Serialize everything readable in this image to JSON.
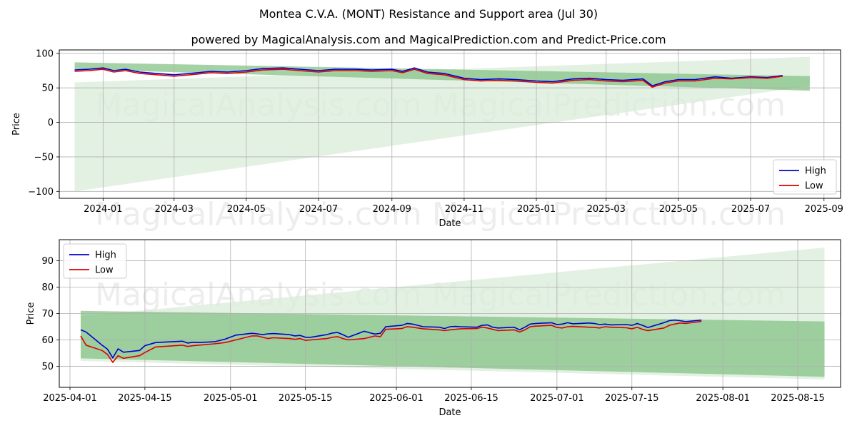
{
  "title": "Montea C.V.A. (MONT) Resistance and Support area (Jul 30)",
  "subtitle": "powered by MagicalAnalysis.com and MagicalPrediction.com and Predict-Price.com",
  "watermarks": [
    "MagicalAnalysis.com",
    "MagicalPrediction.com"
  ],
  "colors": {
    "high": "#0000cc",
    "low": "#dd0000",
    "band_dark": "#7fbf7f",
    "band_light": "#d9ecd9",
    "grid": "#b0b0b0"
  },
  "chart_data": [
    {
      "type": "line",
      "name": "full-history",
      "xlabel": "Date",
      "ylabel": "Price",
      "xlim": [
        "2023-11-25",
        "2025-09-15"
      ],
      "ylim": [
        -110,
        105
      ],
      "x_ticks": [
        "2024-01",
        "2024-03",
        "2024-05",
        "2024-07",
        "2024-09",
        "2024-11",
        "2025-01",
        "2025-03",
        "2025-05",
        "2025-07",
        "2025-09"
      ],
      "y_ticks": [
        100,
        50,
        0,
        -50,
        -100
      ],
      "legend": [
        "High",
        "Low"
      ],
      "legend_position": "bottom-right",
      "grid": true,
      "bands": [
        {
          "name": "resistance-support",
          "start": "2023-12-08",
          "end": "2025-08-20",
          "upper": [
            87,
            67
          ],
          "lower": [
            77,
            46
          ]
        },
        {
          "name": "projection-cone",
          "start": "2023-12-08",
          "end": "2025-08-20",
          "upper": [
            58,
            95
          ],
          "lower": [
            -100,
            53
          ]
        }
      ],
      "series": [
        {
          "name": "High",
          "x": [
            "2023-12-08",
            "2023-12-20",
            "2024-01-01",
            "2024-01-10",
            "2024-01-20",
            "2024-02-01",
            "2024-02-15",
            "2024-03-01",
            "2024-03-15",
            "2024-04-01",
            "2024-04-15",
            "2024-05-01",
            "2024-05-15",
            "2024-06-01",
            "2024-06-15",
            "2024-07-01",
            "2024-07-15",
            "2024-08-01",
            "2024-08-15",
            "2024-09-01",
            "2024-09-10",
            "2024-09-20",
            "2024-10-01",
            "2024-10-15",
            "2024-11-01",
            "2024-11-15",
            "2024-12-01",
            "2024-12-15",
            "2025-01-01",
            "2025-01-15",
            "2025-02-01",
            "2025-02-15",
            "2025-03-01",
            "2025-03-15",
            "2025-04-01",
            "2025-04-09",
            "2025-04-20",
            "2025-05-01",
            "2025-05-15",
            "2025-06-01",
            "2025-06-15",
            "2025-07-01",
            "2025-07-15",
            "2025-07-28"
          ],
          "values": [
            76,
            77,
            79,
            75,
            77,
            73,
            71,
            69,
            71,
            74,
            73,
            75,
            78,
            79,
            77,
            75,
            77,
            77,
            76,
            77,
            74,
            79,
            73,
            71,
            64,
            62,
            63,
            62,
            60,
            59,
            63,
            64,
            62,
            61,
            63,
            53,
            59,
            62,
            62,
            66,
            64,
            66,
            65,
            68
          ]
        },
        {
          "name": "Low",
          "x": [
            "2023-12-08",
            "2023-12-20",
            "2024-01-01",
            "2024-01-10",
            "2024-01-20",
            "2024-02-01",
            "2024-02-15",
            "2024-03-01",
            "2024-03-15",
            "2024-04-01",
            "2024-04-15",
            "2024-05-01",
            "2024-05-15",
            "2024-06-01",
            "2024-06-15",
            "2024-07-01",
            "2024-07-15",
            "2024-08-01",
            "2024-08-15",
            "2024-09-01",
            "2024-09-10",
            "2024-09-20",
            "2024-10-01",
            "2024-10-15",
            "2024-11-01",
            "2024-11-15",
            "2024-12-01",
            "2024-12-15",
            "2025-01-01",
            "2025-01-15",
            "2025-02-01",
            "2025-02-15",
            "2025-03-01",
            "2025-03-15",
            "2025-04-01",
            "2025-04-09",
            "2025-04-20",
            "2025-05-01",
            "2025-05-15",
            "2025-06-01",
            "2025-06-15",
            "2025-07-01",
            "2025-07-15",
            "2025-07-28"
          ],
          "values": [
            74,
            75,
            77,
            73,
            75,
            71,
            69,
            67,
            69,
            72,
            71,
            73,
            76,
            77,
            75,
            73,
            75,
            75,
            74,
            75,
            72,
            77,
            71,
            69,
            62,
            60,
            61,
            60,
            58,
            57,
            61,
            62,
            60,
            59,
            61,
            51,
            57,
            60,
            60,
            64,
            63,
            65,
            64,
            67
          ]
        }
      ]
    },
    {
      "type": "line",
      "name": "recent",
      "xlabel": "Date",
      "ylabel": "Price",
      "xlim": [
        "2025-03-30",
        "2025-08-23"
      ],
      "ylim": [
        42,
        98
      ],
      "x_ticks": [
        "2025-04-01",
        "2025-04-15",
        "2025-05-01",
        "2025-05-15",
        "2025-06-01",
        "2025-06-15",
        "2025-07-01",
        "2025-07-15",
        "2025-08-01",
        "2025-08-15"
      ],
      "y_ticks": [
        90,
        80,
        70,
        60,
        50
      ],
      "legend": [
        "High",
        "Low"
      ],
      "legend_position": "top-left",
      "grid": true,
      "bands": [
        {
          "name": "resistance-support",
          "start": "2025-04-03",
          "end": "2025-08-20",
          "upper": [
            71,
            67
          ],
          "lower": [
            53,
            46
          ]
        },
        {
          "name": "projection-cone",
          "start": "2025-04-03",
          "end": "2025-08-20",
          "upper": [
            69,
            95
          ],
          "lower": [
            52,
            45
          ]
        }
      ],
      "series": [
        {
          "name": "High",
          "x": [
            "2025-04-03",
            "2025-04-04",
            "2025-04-07",
            "2025-04-08",
            "2025-04-09",
            "2025-04-10",
            "2025-04-11",
            "2025-04-14",
            "2025-04-15",
            "2025-04-17",
            "2025-04-22",
            "2025-04-23",
            "2025-04-24",
            "2025-04-25",
            "2025-04-28",
            "2025-04-30",
            "2025-05-02",
            "2025-05-05",
            "2025-05-06",
            "2025-05-07",
            "2025-05-08",
            "2025-05-09",
            "2025-05-12",
            "2025-05-13",
            "2025-05-14",
            "2025-05-15",
            "2025-05-16",
            "2025-05-19",
            "2025-05-20",
            "2025-05-21",
            "2025-05-22",
            "2025-05-23",
            "2025-05-26",
            "2025-05-27",
            "2025-05-28",
            "2025-05-29",
            "2025-05-30",
            "2025-06-02",
            "2025-06-03",
            "2025-06-04",
            "2025-06-05",
            "2025-06-06",
            "2025-06-09",
            "2025-06-10",
            "2025-06-11",
            "2025-06-12",
            "2025-06-13",
            "2025-06-16",
            "2025-06-17",
            "2025-06-18",
            "2025-06-19",
            "2025-06-20",
            "2025-06-23",
            "2025-06-24",
            "2025-06-25",
            "2025-06-26",
            "2025-06-27",
            "2025-06-30",
            "2025-07-01",
            "2025-07-02",
            "2025-07-03",
            "2025-07-04",
            "2025-07-07",
            "2025-07-08",
            "2025-07-09",
            "2025-07-10",
            "2025-07-11",
            "2025-07-14",
            "2025-07-15",
            "2025-07-16",
            "2025-07-17",
            "2025-07-18",
            "2025-07-21",
            "2025-07-22",
            "2025-07-23",
            "2025-07-24",
            "2025-07-25",
            "2025-07-28"
          ],
          "values": [
            63.8,
            63,
            58,
            56.5,
            53.2,
            56.6,
            55.3,
            56,
            57.8,
            59,
            59.5,
            58.8,
            59.1,
            59,
            59.3,
            60.3,
            61.8,
            62.5,
            62.3,
            62,
            62.3,
            62.4,
            62,
            61.5,
            61.7,
            61,
            61,
            62,
            62.6,
            62.8,
            62,
            61,
            63.3,
            62.7,
            62.2,
            62.5,
            65,
            65.5,
            66.2,
            66,
            65.5,
            65,
            64.8,
            64.3,
            65,
            65.1,
            65,
            64.8,
            65.5,
            65.7,
            64.8,
            64.5,
            64.8,
            63.8,
            64.8,
            66,
            66.2,
            66.5,
            65.8,
            66,
            66.5,
            66.1,
            66.4,
            66.2,
            65.8,
            66,
            65.7,
            65.8,
            65.5,
            66.2,
            65.5,
            64.7,
            66.5,
            67.3,
            67.5,
            67.3,
            66.9,
            67.5
          ]
        },
        {
          "name": "Low",
          "x": [
            "2025-04-03",
            "2025-04-04",
            "2025-04-07",
            "2025-04-08",
            "2025-04-09",
            "2025-04-10",
            "2025-04-11",
            "2025-04-14",
            "2025-04-15",
            "2025-04-17",
            "2025-04-22",
            "2025-04-23",
            "2025-04-24",
            "2025-04-25",
            "2025-04-28",
            "2025-04-30",
            "2025-05-02",
            "2025-05-05",
            "2025-05-06",
            "2025-05-07",
            "2025-05-08",
            "2025-05-09",
            "2025-05-12",
            "2025-05-13",
            "2025-05-14",
            "2025-05-15",
            "2025-05-16",
            "2025-05-19",
            "2025-05-20",
            "2025-05-21",
            "2025-05-22",
            "2025-05-23",
            "2025-05-26",
            "2025-05-27",
            "2025-05-28",
            "2025-05-29",
            "2025-05-30",
            "2025-06-02",
            "2025-06-03",
            "2025-06-04",
            "2025-06-05",
            "2025-06-06",
            "2025-06-09",
            "2025-06-10",
            "2025-06-11",
            "2025-06-12",
            "2025-06-13",
            "2025-06-16",
            "2025-06-17",
            "2025-06-18",
            "2025-06-19",
            "2025-06-20",
            "2025-06-23",
            "2025-06-24",
            "2025-06-25",
            "2025-06-26",
            "2025-06-27",
            "2025-06-30",
            "2025-07-01",
            "2025-07-02",
            "2025-07-03",
            "2025-07-04",
            "2025-07-07",
            "2025-07-08",
            "2025-07-09",
            "2025-07-10",
            "2025-07-11",
            "2025-07-14",
            "2025-07-15",
            "2025-07-16",
            "2025-07-17",
            "2025-07-18",
            "2025-07-21",
            "2025-07-22",
            "2025-07-23",
            "2025-07-24",
            "2025-07-25",
            "2025-07-28"
          ],
          "values": [
            61.5,
            58,
            56,
            54.5,
            51.5,
            54,
            53,
            54,
            55.2,
            57.3,
            58,
            57.5,
            57.8,
            58,
            58.5,
            59,
            60,
            61.5,
            61.5,
            61,
            60.5,
            60.8,
            60.5,
            60.2,
            60.5,
            59.8,
            60,
            60.5,
            61,
            61.2,
            60.5,
            60,
            60.5,
            61,
            61.5,
            61.2,
            64,
            64.3,
            65,
            64.8,
            64.5,
            64.2,
            63.8,
            63.5,
            63.8,
            64,
            64.2,
            64.3,
            64.8,
            64.5,
            64,
            63.5,
            63.8,
            63,
            63.8,
            65,
            65.2,
            65.5,
            64.7,
            64.5,
            65,
            65.1,
            64.8,
            64.7,
            64.5,
            65,
            64.8,
            64.6,
            64.2,
            64.8,
            64,
            63.5,
            64.5,
            65.5,
            66,
            66.4,
            66.2,
            67
          ]
        }
      ]
    }
  ]
}
